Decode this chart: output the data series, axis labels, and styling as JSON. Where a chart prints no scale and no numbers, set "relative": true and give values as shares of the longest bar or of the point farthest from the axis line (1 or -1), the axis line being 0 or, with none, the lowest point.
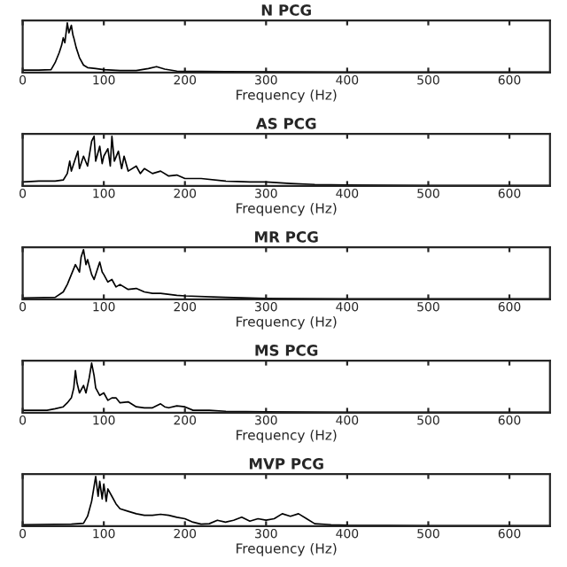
{
  "chart_data": [
    {
      "type": "line",
      "title": "N PCG",
      "xlabel": "Frequency (Hz)",
      "relative": true,
      "tick_labels": "x",
      "xlim": [
        0,
        650
      ],
      "xticks": [
        0,
        100,
        200,
        300,
        400,
        500,
        600
      ],
      "series": [
        {
          "color": "#000000",
          "x": [
            0,
            20,
            35,
            40,
            45,
            48,
            50,
            52,
            55,
            57,
            58,
            60,
            62,
            63,
            66,
            70,
            75,
            80,
            90,
            100,
            120,
            140,
            155,
            165,
            175,
            190,
            250,
            400,
            650
          ],
          "values": [
            0.05,
            0.05,
            0.06,
            0.2,
            0.4,
            0.55,
            0.7,
            0.6,
            1.0,
            0.8,
            0.85,
            0.95,
            0.75,
            0.7,
            0.5,
            0.3,
            0.15,
            0.1,
            0.08,
            0.06,
            0.04,
            0.04,
            0.08,
            0.12,
            0.07,
            0.03,
            0.02,
            0.01,
            0.01
          ]
        }
      ]
    },
    {
      "type": "line",
      "title": "AS PCG",
      "xlabel": "Frequency (Hz)",
      "relative": true,
      "tick_labels": "x",
      "xlim": [
        0,
        650
      ],
      "xticks": [
        0,
        100,
        200,
        300,
        400,
        500,
        600
      ],
      "series": [
        {
          "color": "#000000",
          "x": [
            0,
            20,
            40,
            50,
            55,
            58,
            60,
            65,
            68,
            70,
            75,
            80,
            85,
            88,
            90,
            95,
            98,
            100,
            105,
            108,
            110,
            113,
            118,
            122,
            125,
            130,
            140,
            145,
            150,
            160,
            170,
            180,
            190,
            200,
            220,
            250,
            280,
            300,
            330,
            360,
            400,
            500,
            650
          ],
          "values": [
            0.08,
            0.1,
            0.1,
            0.12,
            0.25,
            0.5,
            0.3,
            0.55,
            0.7,
            0.35,
            0.6,
            0.4,
            0.9,
            1.0,
            0.5,
            0.8,
            0.45,
            0.6,
            0.75,
            0.4,
            1.0,
            0.5,
            0.7,
            0.35,
            0.6,
            0.3,
            0.4,
            0.25,
            0.35,
            0.25,
            0.3,
            0.2,
            0.22,
            0.15,
            0.15,
            0.1,
            0.08,
            0.08,
            0.05,
            0.03,
            0.02,
            0.01,
            0.01
          ]
        }
      ]
    },
    {
      "type": "line",
      "title": "MR PCG",
      "xlabel": "Frequency (Hz)",
      "relative": true,
      "tick_labels": "x",
      "xlim": [
        0,
        650
      ],
      "xticks": [
        0,
        100,
        200,
        300,
        400,
        500,
        600
      ],
      "series": [
        {
          "color": "#000000",
          "x": [
            0,
            40,
            50,
            55,
            60,
            65,
            70,
            72,
            75,
            78,
            80,
            85,
            88,
            92,
            95,
            98,
            100,
            105,
            110,
            115,
            120,
            130,
            140,
            150,
            160,
            170,
            190,
            200,
            250,
            300,
            400,
            650
          ],
          "values": [
            0.03,
            0.04,
            0.15,
            0.3,
            0.5,
            0.7,
            0.55,
            0.85,
            1.0,
            0.7,
            0.8,
            0.5,
            0.4,
            0.6,
            0.75,
            0.55,
            0.5,
            0.35,
            0.4,
            0.25,
            0.3,
            0.2,
            0.22,
            0.15,
            0.12,
            0.12,
            0.08,
            0.07,
            0.04,
            0.02,
            0.01,
            0.01
          ]
        }
      ]
    },
    {
      "type": "line",
      "title": "MS PCG",
      "xlabel": "Frequency (Hz)",
      "relative": true,
      "tick_labels": "x",
      "xlim": [
        0,
        650
      ],
      "xticks": [
        0,
        100,
        200,
        300,
        400,
        500,
        600
      ],
      "series": [
        {
          "color": "#000000",
          "x": [
            0,
            30,
            40,
            50,
            55,
            60,
            63,
            65,
            67,
            70,
            75,
            78,
            82,
            85,
            88,
            90,
            95,
            100,
            105,
            110,
            115,
            120,
            130,
            140,
            150,
            160,
            170,
            175,
            180,
            190,
            200,
            210,
            230,
            250,
            300,
            400,
            650
          ],
          "values": [
            0.05,
            0.05,
            0.08,
            0.12,
            0.2,
            0.3,
            0.5,
            0.85,
            0.6,
            0.4,
            0.55,
            0.4,
            0.7,
            1.0,
            0.75,
            0.5,
            0.35,
            0.4,
            0.25,
            0.3,
            0.3,
            0.2,
            0.22,
            0.12,
            0.1,
            0.1,
            0.18,
            0.12,
            0.1,
            0.14,
            0.12,
            0.05,
            0.05,
            0.03,
            0.02,
            0.01,
            0.01
          ]
        }
      ]
    },
    {
      "type": "line",
      "title": "MVP PCG",
      "xlabel": "Frequency (Hz)",
      "relative": true,
      "tick_labels": "x",
      "xlim": [
        0,
        650
      ],
      "xticks": [
        0,
        100,
        200,
        300,
        400,
        500,
        600
      ],
      "series": [
        {
          "color": "#000000",
          "x": [
            0,
            60,
            75,
            80,
            85,
            88,
            90,
            93,
            95,
            98,
            100,
            103,
            105,
            110,
            115,
            120,
            130,
            140,
            150,
            160,
            170,
            180,
            190,
            200,
            210,
            220,
            230,
            240,
            250,
            260,
            270,
            275,
            280,
            290,
            300,
            310,
            320,
            330,
            340,
            350,
            360,
            380,
            400,
            500,
            650
          ],
          "values": [
            0.03,
            0.04,
            0.06,
            0.2,
            0.5,
            0.8,
            1.0,
            0.6,
            0.9,
            0.55,
            0.85,
            0.5,
            0.75,
            0.6,
            0.45,
            0.35,
            0.3,
            0.25,
            0.22,
            0.22,
            0.24,
            0.22,
            0.18,
            0.15,
            0.08,
            0.04,
            0.05,
            0.12,
            0.08,
            0.12,
            0.18,
            0.14,
            0.1,
            0.15,
            0.12,
            0.15,
            0.25,
            0.2,
            0.25,
            0.15,
            0.05,
            0.03,
            0.02,
            0.01,
            0.01
          ]
        }
      ]
    }
  ]
}
